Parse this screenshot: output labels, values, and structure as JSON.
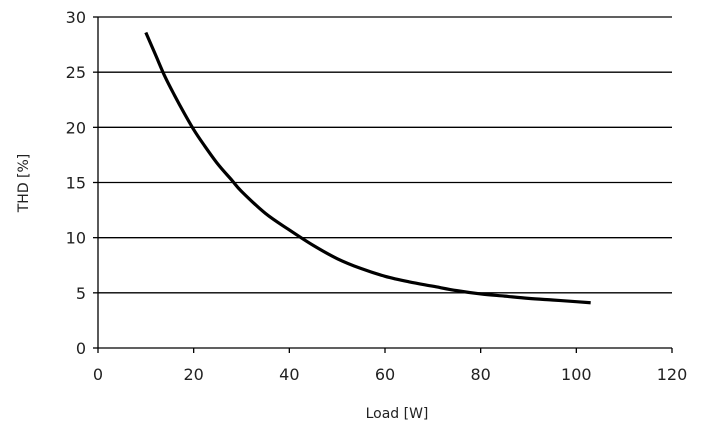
{
  "chart_data": {
    "type": "line",
    "title": "",
    "xlabel": "Load [W]",
    "ylabel": "THD [%]",
    "xlim": [
      0,
      120
    ],
    "ylim": [
      0,
      30
    ],
    "x_ticks": [
      0,
      20,
      40,
      60,
      80,
      100,
      120
    ],
    "y_ticks": [
      0,
      5,
      10,
      15,
      20,
      25,
      30
    ],
    "grid": "horizontal",
    "legend": "none",
    "colors": {
      "line": "#000000",
      "grid": "#000000",
      "axis": "#000000",
      "text": "#222222"
    },
    "series": [
      {
        "x": [
          10,
          12,
          14,
          16,
          18,
          20,
          22,
          25,
          28,
          30,
          35,
          40,
          45,
          50,
          55,
          60,
          65,
          70,
          75,
          80,
          85,
          90,
          95,
          100,
          103
        ],
        "y": [
          28.6,
          26.6,
          24.6,
          22.9,
          21.3,
          19.8,
          18.5,
          16.7,
          15.2,
          14.2,
          12.2,
          10.7,
          9.3,
          8.1,
          7.2,
          6.5,
          6.0,
          5.6,
          5.2,
          4.9,
          4.7,
          4.5,
          4.35,
          4.2,
          4.1
        ]
      }
    ]
  }
}
